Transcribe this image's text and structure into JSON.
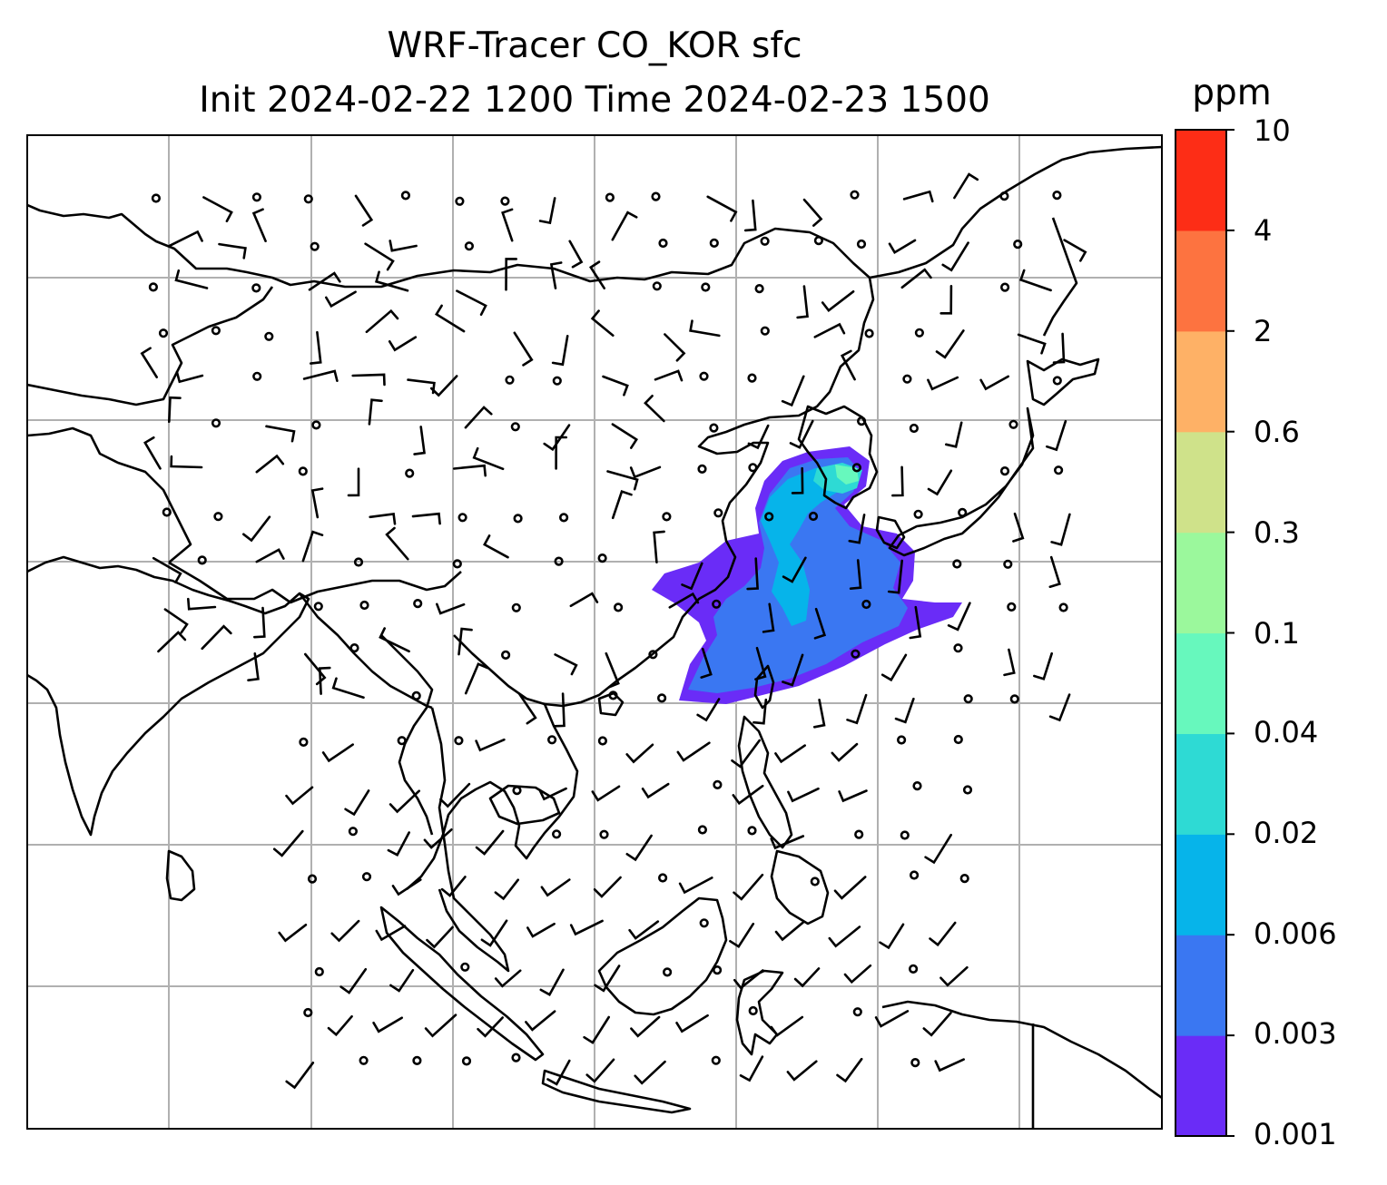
{
  "title": {
    "line1": "WRF-Tracer CO_KOR sfc",
    "line2": "Init 2024-02-22 1200 Time 2024-02-23 1500"
  },
  "colorbar": {
    "unit": "ppm",
    "ticks": [
      "0.001",
      "0.003",
      "0.006",
      "0.02",
      "0.04",
      "0.1",
      "0.3",
      "0.6",
      "2",
      "4",
      "10"
    ],
    "colors": [
      "#6a2cf7",
      "#3a77f2",
      "#06b4ea",
      "#2edad4",
      "#67f8bd",
      "#9bf89c",
      "#cfe28a",
      "#feb166",
      "#fd7340",
      "#fd2d16"
    ]
  },
  "map": {
    "gridlines": true,
    "coastlines": true,
    "barbs": true
  }
}
